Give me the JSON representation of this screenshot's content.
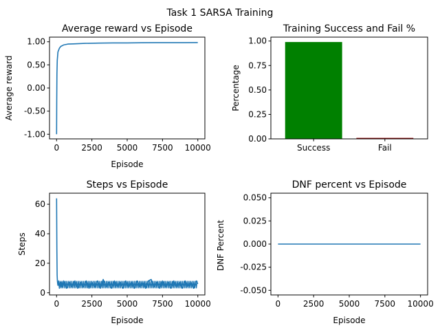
{
  "figure": {
    "suptitle": "Task 1 SARSA Training"
  },
  "colors": {
    "line": "#1f77b4",
    "success": "#008000",
    "fail": "#8b0000"
  },
  "chart_data": [
    {
      "id": "avg-reward",
      "type": "line",
      "title": "Average reward vs Episode",
      "xlabel": "Episode",
      "ylabel": "Average reward",
      "xlim": [
        -500,
        10500
      ],
      "ylim": [
        -1.1,
        1.1
      ],
      "xticks": [
        0,
        2500,
        5000,
        7500,
        10000
      ],
      "xtick_labels": [
        "0",
        "2500",
        "5000",
        "7500",
        "10000"
      ],
      "yticks": [
        -1.0,
        -0.5,
        0.0,
        0.5,
        1.0
      ],
      "ytick_labels": [
        "-1.00",
        "-0.50",
        "0.00",
        "0.50",
        "1.00"
      ],
      "grid": false,
      "series": [
        {
          "x": [
            1,
            10,
            25,
            50,
            100,
            200,
            300,
            500,
            800,
            1200,
            2000,
            3000,
            4000,
            5000,
            6000,
            7000,
            8000,
            9000,
            10000
          ],
          "y": [
            -1.0,
            -0.3,
            0.3,
            0.6,
            0.78,
            0.86,
            0.9,
            0.93,
            0.95,
            0.955,
            0.965,
            0.97,
            0.975,
            0.975,
            0.978,
            0.98,
            0.98,
            0.98,
            0.982
          ]
        }
      ]
    },
    {
      "id": "success-fail",
      "type": "bar",
      "title": "Training Success and Fail %",
      "xlabel": "",
      "ylabel": "Percentage",
      "categories": [
        "Success",
        "Fail"
      ],
      "values": [
        0.99,
        0.01
      ],
      "bar_colors": [
        "#008000",
        "#8b0000"
      ],
      "ylim": [
        0,
        1.04
      ],
      "yticks": [
        0.0,
        0.25,
        0.5,
        0.75,
        1.0
      ],
      "ytick_labels": [
        "0.00",
        "0.25",
        "0.50",
        "0.75",
        "1.00"
      ],
      "grid": false
    },
    {
      "id": "steps",
      "type": "line",
      "title": "Steps vs Episode",
      "xlabel": "Episode",
      "ylabel": "Steps",
      "xlim": [
        -500,
        10500
      ],
      "ylim": [
        -1.5,
        67.5
      ],
      "xticks": [
        0,
        2500,
        5000,
        7500,
        10000
      ],
      "xtick_labels": [
        "0",
        "2500",
        "5000",
        "7500",
        "10000"
      ],
      "yticks": [
        0,
        20,
        40,
        60
      ],
      "ytick_labels": [
        "0",
        "20",
        "40",
        "60"
      ],
      "grid": false,
      "series": [
        {
          "x": [
            1,
            20,
            40,
            60,
            80,
            100,
            150,
            200,
            300,
            400,
            500,
            700,
            900,
            1100,
            1300,
            1500,
            1700,
            1900,
            2100,
            2300,
            2500,
            2700,
            2900,
            3100,
            3300,
            3500,
            3700,
            3900,
            4100,
            4300,
            4500,
            4700,
            4900,
            5100,
            5300,
            5500,
            5700,
            5900,
            6100,
            6300,
            6500,
            6700,
            6900,
            7100,
            7300,
            7500,
            7700,
            7900,
            8100,
            8300,
            8500,
            8700,
            8900,
            9100,
            9300,
            9500,
            9700,
            9900,
            10000
          ],
          "y": [
            64,
            30,
            12,
            8,
            6,
            5,
            8,
            3,
            7,
            4,
            8,
            3,
            7,
            4,
            8,
            3,
            7,
            4,
            8,
            3,
            7,
            4,
            8,
            3,
            9,
            4,
            7,
            3,
            8,
            4,
            7,
            3,
            8,
            4,
            7,
            3,
            8,
            4,
            7,
            3,
            8,
            9,
            4,
            7,
            3,
            8,
            4,
            7,
            3,
            8,
            4,
            7,
            3,
            8,
            4,
            7,
            3,
            8,
            6
          ]
        }
      ],
      "band": {
        "x_start": 200,
        "x_end": 10000,
        "y_low": 3,
        "y_high": 8
      }
    },
    {
      "id": "dnf",
      "type": "line",
      "title": "DNF percent vs Episode",
      "xlabel": "Episode",
      "ylabel": "DNF Percent",
      "xlim": [
        -500,
        10500
      ],
      "ylim": [
        -0.055,
        0.055
      ],
      "xticks": [
        0,
        2500,
        5000,
        7500,
        10000
      ],
      "xtick_labels": [
        "0",
        "2500",
        "5000",
        "7500",
        "10000"
      ],
      "yticks": [
        -0.05,
        -0.025,
        0.0,
        0.025,
        0.05
      ],
      "ytick_labels": [
        "-0.050",
        "-0.025",
        "0.000",
        "0.025",
        "0.050"
      ],
      "grid": false,
      "series": [
        {
          "x": [
            1,
            10000
          ],
          "y": [
            0,
            0
          ]
        }
      ]
    }
  ]
}
